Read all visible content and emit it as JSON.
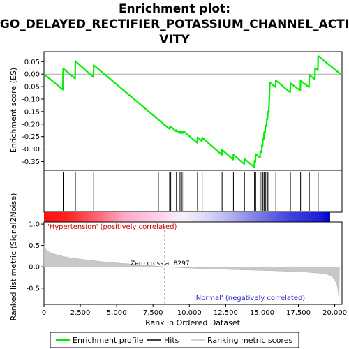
{
  "chart_data": {
    "type": "line",
    "title_lines": [
      "Enrichment plot:",
      "GO_DELAYED_RECTIFIER_POTASSIUM_CHANNEL_ACTI",
      "VITY"
    ],
    "ylabel_top": "Enrichment score (ES)",
    "ylabel_bottom": "Ranked list metric (Signal2Noise)",
    "xlabel": "Rank in Ordered Dataset",
    "xlim": [
      0,
      20500
    ],
    "x_ticks": [
      0,
      2500,
      5000,
      7500,
      10000,
      12500,
      15000,
      17500,
      20000
    ],
    "x_tick_labels": [
      "0",
      "2,500",
      "5,000",
      "7,500",
      "10,000",
      "12,500",
      "15,000",
      "17,500",
      "20,000"
    ],
    "es_ylim": [
      -0.385,
      0.09
    ],
    "es_ticks": [
      0.05,
      0.0,
      -0.05,
      -0.1,
      -0.15,
      -0.2,
      -0.25,
      -0.3,
      -0.35
    ],
    "es_tick_labels": [
      "0.05",
      "0.00",
      "-0.05",
      "-0.10",
      "-0.15",
      "-0.20",
      "-0.25",
      "-0.30",
      "-0.35"
    ],
    "metric_ylim": [
      -0.88,
      1.05
    ],
    "metric_ticks": [
      1.0,
      0.5,
      0.0,
      -0.5
    ],
    "metric_tick_labels": [
      "1.0",
      "0.5",
      "0.0",
      "-0.5"
    ],
    "hits": [
      1320,
      2160,
      3420,
      7870,
      8640,
      8720,
      9110,
      9360,
      9500,
      9620,
      10560,
      10880,
      12250,
      13030,
      13790,
      14480,
      14560,
      14880,
      14990,
      15060,
      15140,
      15230,
      15330,
      15400,
      15480,
      15950,
      16950,
      17650,
      18250,
      18650,
      18860
    ],
    "es_series": [
      [
        0,
        0.0
      ],
      [
        1300,
        -0.062
      ],
      [
        1320,
        0.023
      ],
      [
        2140,
        -0.018
      ],
      [
        2160,
        0.052
      ],
      [
        3400,
        -0.012
      ],
      [
        3420,
        0.036
      ],
      [
        7850,
        -0.181
      ],
      [
        8620,
        -0.219
      ],
      [
        8640,
        -0.213
      ],
      [
        8700,
        -0.216
      ],
      [
        8720,
        -0.21
      ],
      [
        9090,
        -0.229
      ],
      [
        9110,
        -0.224
      ],
      [
        9340,
        -0.236
      ],
      [
        9360,
        -0.23
      ],
      [
        9480,
        -0.237
      ],
      [
        9500,
        -0.231
      ],
      [
        9600,
        -0.236
      ],
      [
        9620,
        -0.229
      ],
      [
        10540,
        -0.275
      ],
      [
        10560,
        -0.253
      ],
      [
        10860,
        -0.268
      ],
      [
        10880,
        -0.254
      ],
      [
        12230,
        -0.323
      ],
      [
        12250,
        -0.303
      ],
      [
        13010,
        -0.342
      ],
      [
        13030,
        -0.322
      ],
      [
        13770,
        -0.36
      ],
      [
        13790,
        -0.339
      ],
      [
        14460,
        -0.372
      ],
      [
        14480,
        -0.347
      ],
      [
        14540,
        -0.351
      ],
      [
        14560,
        -0.32
      ],
      [
        14860,
        -0.334
      ],
      [
        14880,
        -0.308
      ],
      [
        14970,
        -0.313
      ],
      [
        14990,
        -0.285
      ],
      [
        15040,
        -0.287
      ],
      [
        15060,
        -0.259
      ],
      [
        15120,
        -0.262
      ],
      [
        15140,
        -0.232
      ],
      [
        15210,
        -0.235
      ],
      [
        15230,
        -0.205
      ],
      [
        15310,
        -0.209
      ],
      [
        15330,
        -0.178
      ],
      [
        15380,
        -0.18
      ],
      [
        15400,
        -0.15
      ],
      [
        15460,
        -0.152
      ],
      [
        15480,
        -0.121
      ],
      [
        15500,
        -0.095
      ],
      [
        15520,
        -0.06
      ],
      [
        15540,
        -0.034
      ],
      [
        15930,
        -0.052
      ],
      [
        15950,
        -0.025
      ],
      [
        16930,
        -0.073
      ],
      [
        16950,
        -0.036
      ],
      [
        17630,
        -0.066
      ],
      [
        17650,
        -0.026
      ],
      [
        18230,
        -0.052
      ],
      [
        18250,
        -0.003
      ],
      [
        18630,
        -0.021
      ],
      [
        18650,
        0.024
      ],
      [
        18840,
        0.015
      ],
      [
        18860,
        0.073
      ],
      [
        20400,
        0.0
      ]
    ],
    "zero_cross_rank": 8297,
    "annotation_zero_cross": "Zero cross at 8297",
    "annotation_positive": "'Hypertension' (positively correlated)",
    "annotation_negative": "'Normal' (negatively correlated)",
    "metric_series": [
      [
        0,
        0.55
      ],
      [
        100,
        0.42
      ],
      [
        300,
        0.36
      ],
      [
        600,
        0.31
      ],
      [
        1000,
        0.27
      ],
      [
        1500,
        0.23
      ],
      [
        2000,
        0.2
      ],
      [
        3000,
        0.16
      ],
      [
        4000,
        0.12
      ],
      [
        5000,
        0.09
      ],
      [
        6000,
        0.065
      ],
      [
        7000,
        0.04
      ],
      [
        7500,
        0.025
      ],
      [
        8000,
        0.01
      ],
      [
        8297,
        0.0
      ],
      [
        9000,
        -0.015
      ],
      [
        10000,
        -0.03
      ],
      [
        11000,
        -0.045
      ],
      [
        12000,
        -0.055
      ],
      [
        13000,
        -0.065
      ],
      [
        14000,
        -0.075
      ],
      [
        15000,
        -0.085
      ],
      [
        16000,
        -0.095
      ],
      [
        17000,
        -0.11
      ],
      [
        18000,
        -0.125
      ],
      [
        19000,
        -0.15
      ],
      [
        19500,
        -0.18
      ],
      [
        19800,
        -0.23
      ],
      [
        20000,
        -0.3
      ],
      [
        20150,
        -0.42
      ],
      [
        20250,
        -0.6
      ],
      [
        20300,
        -0.85
      ],
      [
        20320,
        0.0
      ]
    ],
    "legend": {
      "placement": "bottom",
      "items": [
        "Enrichment profile",
        "Hits",
        "Ranking metric scores"
      ]
    },
    "colors": {
      "es_line": "#00ee00",
      "hits": "#000000",
      "metric_fill": "#c8c8c8",
      "red": "#ff0000",
      "blue": "#0000ff",
      "zero_line": "#aaaaaa"
    }
  }
}
